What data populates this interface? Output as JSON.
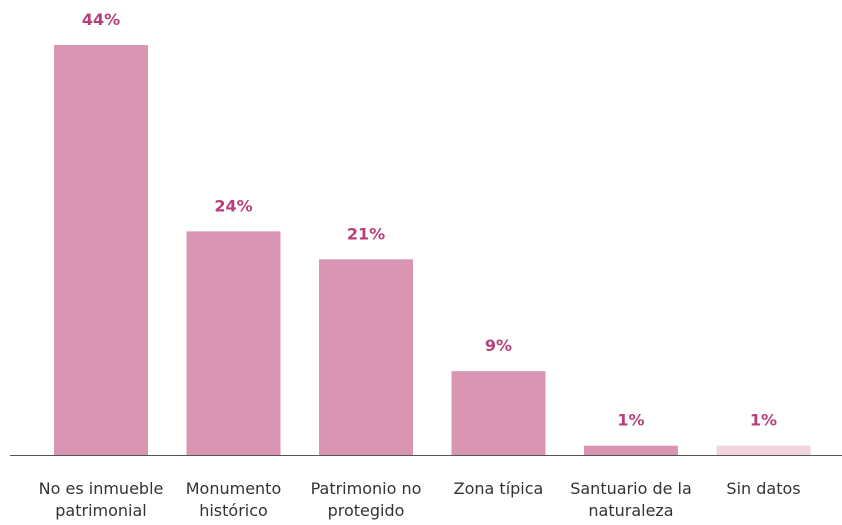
{
  "chart_data": {
    "type": "bar",
    "categories": [
      "No es inmueble patrimonial",
      "Monumento histórico",
      "Patrimonio no protegido",
      "Zona típica",
      "Santuario de la naturaleza",
      "Sin datos"
    ],
    "values": [
      44,
      24,
      21,
      9,
      1,
      1
    ],
    "value_labels": [
      "44%",
      "24%",
      "21%",
      "9%",
      "1%",
      "1%"
    ],
    "colors": [
      "#d896b2",
      "#d896b2",
      "#d896b2",
      "#d896b2",
      "#d896b2",
      "#f2d4e0"
    ],
    "label_color": "#b8407a"
  }
}
